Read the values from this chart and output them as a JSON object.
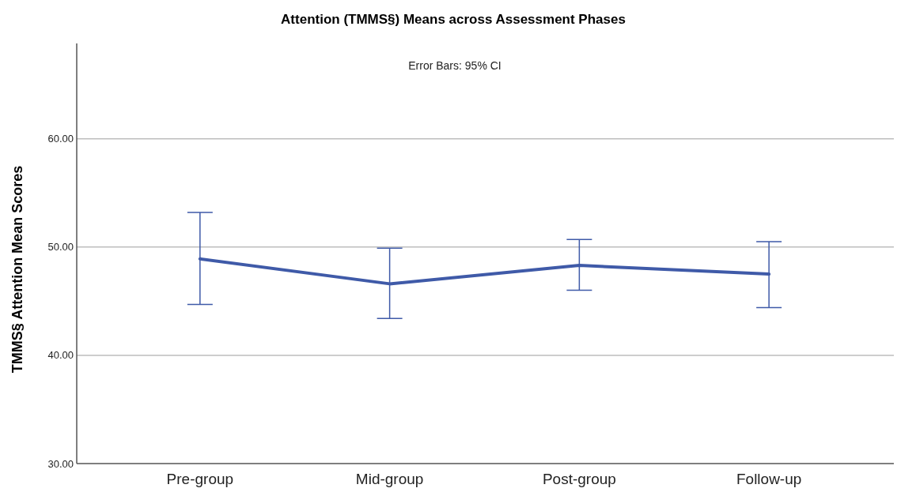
{
  "chart_data": {
    "type": "line",
    "title": "Attention (TMMS§) Means across Assessment Phases",
    "ylabel": "TMMS§ Attention Mean Scores",
    "annotations": [
      "Error Bars: 95% CI"
    ],
    "categories": [
      "Pre-group",
      "Mid-group",
      "Post-group",
      "Follow-up"
    ],
    "color": "#3f5aa8",
    "values": [
      48.9,
      46.6,
      48.3,
      47.5
    ],
    "errors": [
      [
        44.7,
        53.2
      ],
      [
        43.4,
        49.9
      ],
      [
        46.0,
        50.7
      ],
      [
        44.4,
        50.5
      ]
    ],
    "ylim": [
      30,
      68.8
    ],
    "yticks": [
      {
        "value": 30,
        "label": "30.00"
      },
      {
        "value": 40,
        "label": "40.00"
      },
      {
        "value": 50,
        "label": "50.00"
      },
      {
        "value": 60,
        "label": "60.00"
      }
    ],
    "grid": "y",
    "marker": "none",
    "line_style": "solid"
  }
}
